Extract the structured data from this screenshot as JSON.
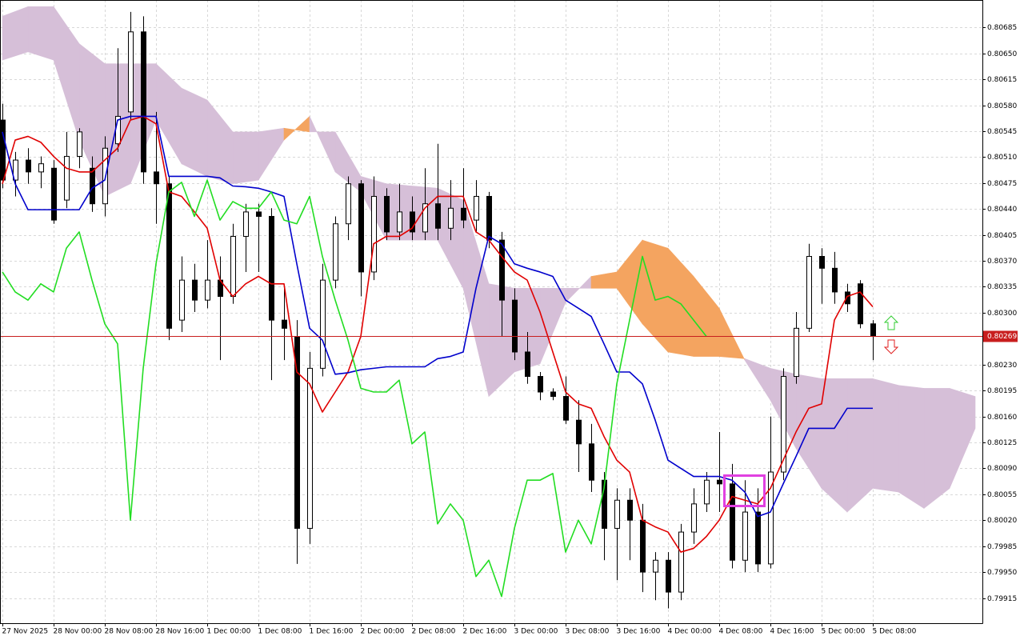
{
  "chart_data": {
    "type": "candlestick",
    "xlim": [
      -0.375,
      153.125
    ],
    "ylim": [
      0.79881,
      0.80722
    ],
    "grid": true,
    "bull_color": "#ffffff",
    "bear_color": "#000000",
    "xticks": [
      {
        "value": 0,
        "label": "27 Nov 2025"
      },
      {
        "value": 8,
        "label": "28 Nov 00:00"
      },
      {
        "value": 16,
        "label": "28 Nov 08:00"
      },
      {
        "value": 24,
        "label": "28 Nov 16:00"
      },
      {
        "value": 32,
        "label": "1 Dec 00:00"
      },
      {
        "value": 40,
        "label": "1 Dec 08:00"
      },
      {
        "value": 48,
        "label": "1 Dec 16:00"
      },
      {
        "value": 56,
        "label": "2 Dec 00:00"
      },
      {
        "value": 64,
        "label": "2 Dec 08:00"
      },
      {
        "value": 72,
        "label": "2 Dec 16:00"
      },
      {
        "value": 80,
        "label": "3 Dec 00:00"
      },
      {
        "value": 88,
        "label": "3 Dec 08:00"
      },
      {
        "value": 96,
        "label": "3 Dec 16:00"
      },
      {
        "value": 104,
        "label": "4 Dec 00:00"
      },
      {
        "value": 112,
        "label": "4 Dec 08:00"
      },
      {
        "value": 120,
        "label": "4 Dec 16:00"
      },
      {
        "value": 128,
        "label": "5 Dec 00:00"
      },
      {
        "value": 136,
        "label": "5 Dec 08:00"
      }
    ],
    "yticks": [
      0.80685,
      {
        "value": 0.8065,
        "label": "0.80650"
      },
      0.80615,
      {
        "value": 0.8058,
        "label": "0.80580"
      },
      0.80545,
      {
        "value": 0.8051,
        "label": "0.80510"
      },
      0.80475,
      {
        "value": 0.8044,
        "label": "0.80440"
      },
      0.80405,
      {
        "value": 0.8037,
        "label": "0.80370"
      },
      0.80335,
      {
        "value": 0.803,
        "label": "0.80300"
      },
      {
        "value": 0.8023,
        "label": "0.80230"
      },
      0.80195,
      {
        "value": 0.8016,
        "label": "0.80160"
      },
      0.80125,
      {
        "value": 0.8009,
        "label": "0.80090"
      },
      0.80055,
      {
        "value": 0.8002,
        "label": "0.80020"
      },
      0.79985,
      {
        "value": 0.7995,
        "label": "0.79950"
      },
      0.79915
    ],
    "x": [
      0,
      2,
      4,
      6,
      8,
      10,
      12,
      14,
      16,
      18,
      20,
      22,
      24,
      26,
      28,
      30,
      32,
      34,
      36,
      38,
      40,
      42,
      44,
      46,
      48,
      50,
      52,
      54,
      56,
      58,
      60,
      62,
      64,
      66,
      68,
      70,
      72,
      74,
      76,
      78,
      80,
      82,
      84,
      86,
      88,
      90,
      92,
      94,
      96,
      98,
      100,
      102,
      104,
      106,
      108,
      110,
      112,
      114,
      116,
      118,
      120,
      122,
      124,
      126,
      128,
      130,
      132,
      134,
      136
    ],
    "open": [
      0.8056,
      0.80479,
      0.80506,
      0.8049,
      0.80495,
      0.80452,
      0.80511,
      0.80495,
      0.80447,
      0.80528,
      0.80571,
      0.80679,
      0.8049,
      0.80474,
      0.8029,
      0.80344,
      0.80317,
      0.80344,
      0.80322,
      0.80403,
      0.80436,
      0.8043,
      0.8029,
      0.80268,
      0.80009,
      0.80225,
      0.80344,
      0.8042,
      0.80474,
      0.80355,
      0.80457,
      0.80409,
      0.80436,
      0.80409,
      0.80447,
      0.80414,
      0.80441,
      0.80425,
      0.80457,
      0.80398,
      0.80317,
      0.80247,
      0.80214,
      0.80193,
      0.80187,
      0.80155,
      0.80123,
      0.80074,
      0.80009,
      0.80047,
      0.8002,
      0.7995,
      0.79966,
      0.79923,
      0.80004,
      0.80042,
      0.80074,
      0.80069,
      0.79966,
      0.80031,
      0.79961,
      0.80085,
      0.80214,
      0.80279,
      0.80376,
      0.8036,
      0.80328,
      0.80339,
      0.80285
    ],
    "high": [
      0.80582,
      0.80517,
      0.80522,
      0.80511,
      0.80506,
      0.80544,
      0.80549,
      0.80511,
      0.80538,
      0.80657,
      0.80706,
      0.807,
      0.80571,
      0.80484,
      0.80376,
      0.80366,
      0.80398,
      0.80376,
      0.8042,
      0.80447,
      0.80447,
      0.80441,
      0.80333,
      0.8029,
      0.80247,
      0.80366,
      0.8043,
      0.80484,
      0.80479,
      0.80484,
      0.80468,
      0.80474,
      0.80457,
      0.80495,
      0.80528,
      0.80479,
      0.80495,
      0.80479,
      0.80463,
      0.80409,
      0.80333,
      0.80274,
      0.8022,
      0.80198,
      0.80214,
      0.80182,
      0.8015,
      0.80085,
      0.80063,
      0.80063,
      0.80042,
      0.79977,
      0.79977,
      0.80015,
      0.80063,
      0.80085,
      0.80139,
      0.80096,
      0.80074,
      0.80063,
      0.8016,
      0.80225,
      0.80301,
      0.80393,
      0.80387,
      0.80382,
      0.80339,
      0.80344,
      0.8029
    ],
    "low": [
      0.80468,
      0.80457,
      0.80474,
      0.80468,
      0.8042,
      0.80441,
      0.80495,
      0.80436,
      0.8043,
      0.80517,
      0.8056,
      0.80474,
      0.8042,
      0.80263,
      0.80274,
      0.80301,
      0.80306,
      0.80236,
      0.80312,
      0.80355,
      0.80355,
      0.80209,
      0.80236,
      0.79961,
      0.79988,
      0.80214,
      0.80333,
      0.80398,
      0.80322,
      0.80344,
      0.80398,
      0.80398,
      0.80398,
      0.80398,
      0.80398,
      0.80398,
      0.80414,
      0.80409,
      0.80387,
      0.80268,
      0.80236,
      0.80204,
      0.80182,
      0.80182,
      0.8015,
      0.80085,
      0.80058,
      0.79966,
      0.79939,
      0.79966,
      0.79923,
      0.79912,
      0.79901,
      0.79912,
      0.79988,
      0.80031,
      0.80031,
      0.79955,
      0.7995,
      0.7995,
      0.79955,
      0.80074,
      0.80204,
      0.80274,
      0.80312,
      0.80312,
      0.80301,
      0.80279,
      0.80236
    ],
    "close": [
      0.80479,
      0.80506,
      0.8049,
      0.80501,
      0.80425,
      0.80511,
      0.80544,
      0.80447,
      0.80522,
      0.80565,
      0.80679,
      0.8049,
      0.80474,
      0.80279,
      0.80344,
      0.80317,
      0.80344,
      0.80322,
      0.80403,
      0.80436,
      0.8043,
      0.8029,
      0.80279,
      0.80009,
      0.80225,
      0.80344,
      0.8042,
      0.80474,
      0.80355,
      0.80457,
      0.80409,
      0.80436,
      0.80409,
      0.80447,
      0.80414,
      0.80441,
      0.80425,
      0.80457,
      0.80398,
      0.80317,
      0.80247,
      0.80214,
      0.80193,
      0.80187,
      0.80155,
      0.80123,
      0.80074,
      0.80009,
      0.80047,
      0.8002,
      0.7995,
      0.79966,
      0.79923,
      0.80004,
      0.80042,
      0.80074,
      0.80069,
      0.79966,
      0.80031,
      0.79961,
      0.80085,
      0.80214,
      0.80279,
      0.80376,
      0.8036,
      0.80328,
      0.80312,
      0.80285,
      0.80269
    ],
    "lines": [
      {
        "color": "#e00000",
        "values": [
          0.80474,
          0.80533,
          0.80538,
          0.8053,
          0.80511,
          0.80495,
          0.8049,
          0.8049,
          0.80506,
          0.80522,
          0.8056,
          0.80565,
          0.80555,
          0.80463,
          0.80457,
          0.80436,
          0.80414,
          0.80344,
          0.80322,
          0.80339,
          0.80349,
          0.80339,
          0.80339,
          0.8022,
          0.80204,
          0.80166,
          0.80193,
          0.8022,
          0.80268,
          0.80393,
          0.80403,
          0.80403,
          0.80414,
          0.80441,
          0.80457,
          0.80457,
          0.80457,
          0.80409,
          0.80398,
          0.80376,
          0.80355,
          0.80344,
          0.80301,
          0.80247,
          0.80193,
          0.80177,
          0.80171,
          0.80133,
          0.80101,
          0.80085,
          0.8002,
          0.80011,
          0.80004,
          0.79977,
          0.79982,
          0.79998,
          0.8002,
          0.80052,
          0.80047,
          0.80042,
          0.80063,
          0.80101,
          0.80139,
          0.80171,
          0.80177,
          0.8029,
          0.80322,
          0.80328,
          0.80308
        ]
      },
      {
        "color": "#0000cc",
        "values": [
          0.80544,
          0.80474,
          0.80439,
          0.80439,
          0.80439,
          0.80439,
          0.80439,
          0.80468,
          0.80479,
          0.8056,
          0.80565,
          0.80565,
          0.80565,
          0.80484,
          0.80484,
          0.80484,
          0.80484,
          0.80482,
          0.80471,
          0.8047,
          0.80468,
          0.80463,
          0.80457,
          0.80366,
          0.80279,
          0.80263,
          0.80217,
          0.80219,
          0.80223,
          0.80225,
          0.80227,
          0.80227,
          0.80227,
          0.80227,
          0.80238,
          0.80241,
          0.80247,
          0.80333,
          0.80403,
          0.80393,
          0.80366,
          0.8036,
          0.80355,
          0.80349,
          0.80317,
          0.80306,
          0.80295,
          0.80258,
          0.8022,
          0.8022,
          0.80204,
          0.80155,
          0.80101,
          0.8009,
          0.80079,
          0.80079,
          0.80079,
          0.80074,
          0.80058,
          0.80025,
          0.80031,
          0.80069,
          0.80106,
          0.80144,
          0.80144,
          0.80144,
          0.80171,
          0.80171,
          0.80171
        ]
      },
      {
        "color": "#22dd22",
        "values": [
          0.80355,
          0.80328,
          0.80317,
          0.80339,
          0.80328,
          0.80387,
          0.80409,
          0.80344,
          0.80285,
          0.80258,
          0.8002,
          0.80225,
          0.80366,
          0.80463,
          0.80476,
          0.8043,
          0.80479,
          0.80425,
          0.8045,
          0.80441,
          0.80441,
          0.80463,
          0.80425,
          0.8042,
          0.80457,
          0.80376,
          0.80317,
          0.80263,
          0.80198,
          0.80193,
          0.80193,
          0.80209,
          0.80123,
          0.80139,
          0.80015,
          0.80042,
          0.8002,
          0.79944,
          0.79966,
          0.79917,
          0.80009,
          0.80074,
          0.80074,
          0.80083,
          0.79977,
          0.8002,
          0.79988,
          0.80063,
          0.80204,
          0.8029,
          0.80376,
          0.80317,
          0.80322,
          0.80312,
          0.8029,
          0.80268,
          null,
          null,
          null,
          null,
          null,
          null,
          null,
          null,
          null,
          null,
          null,
          null,
          null
        ]
      }
    ],
    "cloud": {
      "up_color": "#f4a460",
      "down_color": "#d6bfd8",
      "x": [
        0,
        4,
        8,
        12,
        16,
        20,
        24,
        28,
        32,
        36,
        40,
        44,
        48,
        52,
        56,
        60,
        64,
        68,
        72,
        76,
        80,
        84,
        88,
        92,
        96,
        100,
        104,
        108,
        112,
        116,
        120,
        124,
        128,
        132,
        136,
        140,
        144,
        148,
        152
      ],
      "span_a": [
        0.80641,
        0.80652,
        0.80641,
        0.80533,
        0.80457,
        0.80474,
        0.8056,
        0.80501,
        0.80484,
        0.80474,
        0.80479,
        0.80533,
        0.80565,
        0.8049,
        0.80463,
        0.80398,
        0.80398,
        0.80398,
        0.80333,
        0.80187,
        0.8022,
        0.80231,
        0.80314,
        0.80349,
        0.80355,
        0.80398,
        0.80387,
        0.80349,
        0.80306,
        0.80236,
        0.80182,
        0.80117,
        0.80063,
        0.80031,
        0.80063,
        0.80058,
        0.80036,
        0.80063,
        0.80144
      ],
      "span_b": [
        0.807,
        0.80713,
        0.80713,
        0.80663,
        0.80636,
        0.80636,
        0.80636,
        0.80603,
        0.80587,
        0.80544,
        0.80544,
        0.80549,
        0.80544,
        0.80544,
        0.80484,
        0.80474,
        0.80471,
        0.80468,
        0.80452,
        0.80339,
        0.80333,
        0.80333,
        0.80333,
        0.80333,
        0.80333,
        0.80285,
        0.80247,
        0.80241,
        0.80241,
        0.80238,
        0.80225,
        0.80217,
        0.80211,
        0.80211,
        0.80211,
        0.80202,
        0.80198,
        0.80198,
        0.80187
      ]
    },
    "current_price": 0.80269,
    "current_price_color": "#c81e1e"
  }
}
